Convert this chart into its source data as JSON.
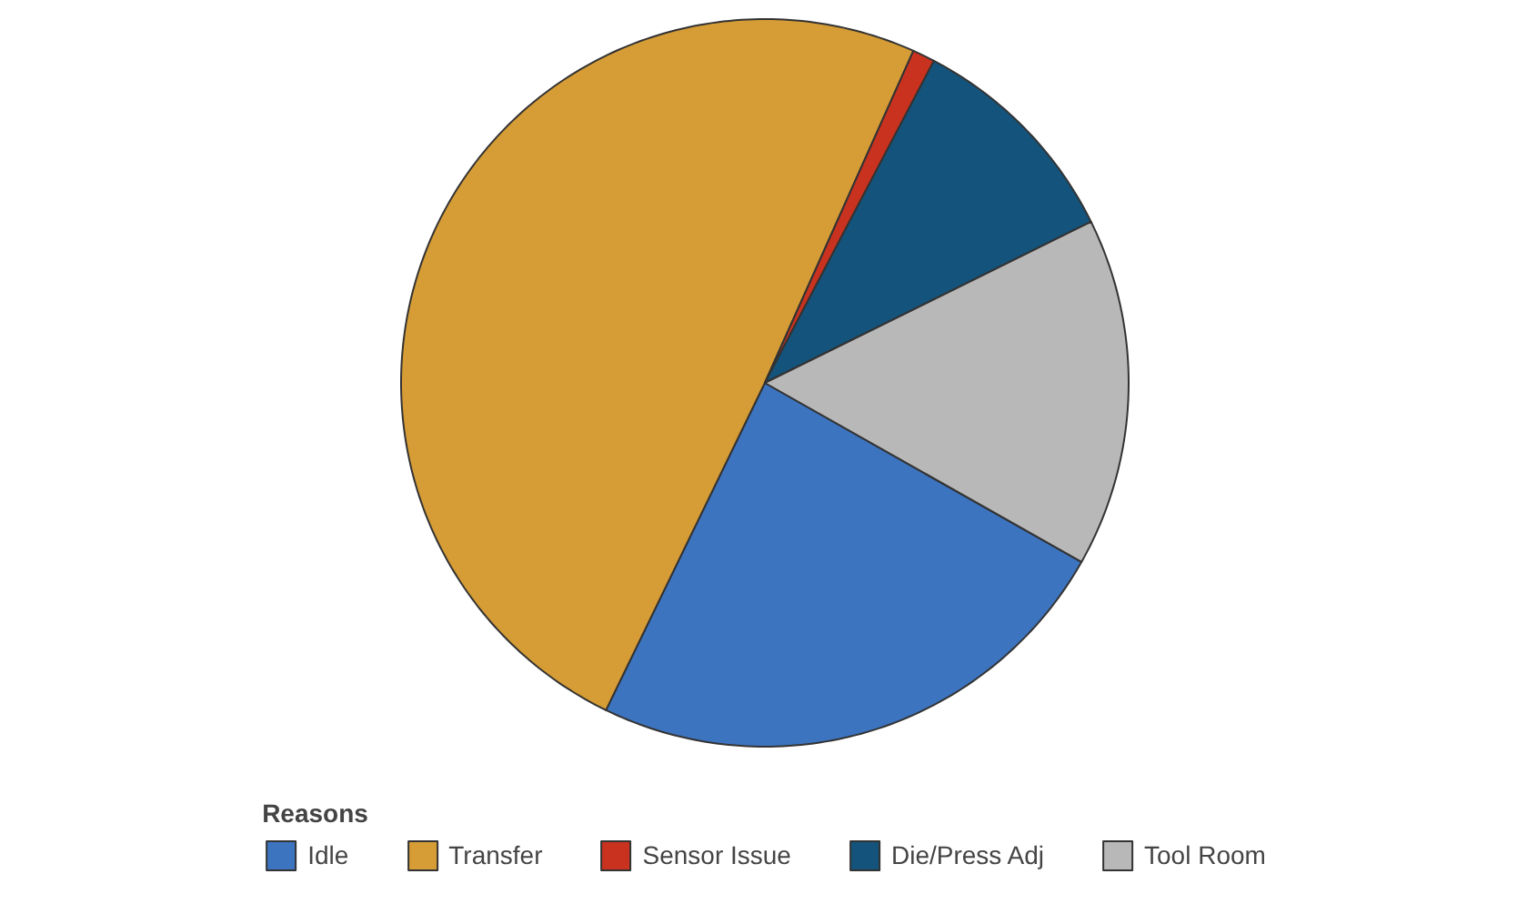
{
  "chart_data": {
    "type": "pie",
    "legend_title": "Reasons",
    "legend": "bottom",
    "categories": [
      "Idle",
      "Transfer",
      "Sensor Issue",
      "Die/Press Adj",
      "Tool Room"
    ],
    "values": [
      24,
      49.5,
      1,
      10,
      15.5
    ],
    "colors": [
      "#3d74c0",
      "#d69c35",
      "#c8321f",
      "#14547c",
      "#b8b8b8"
    ]
  }
}
